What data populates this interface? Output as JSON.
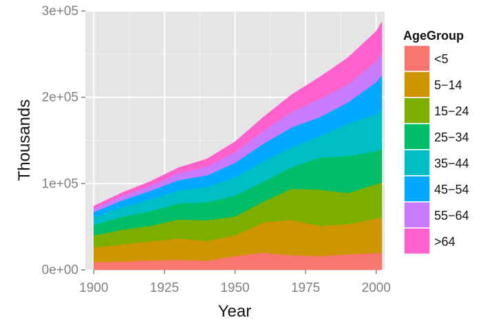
{
  "chart_data": {
    "type": "area",
    "stacked": true,
    "title": "",
    "xlabel": "Year",
    "ylabel": "Thousands",
    "xlim": [
      1897,
      2003
    ],
    "ylim": [
      0,
      300000
    ],
    "x_ticks": [
      1900,
      1925,
      1950,
      1975,
      2000
    ],
    "x_tick_labels": [
      "1900",
      "1925",
      "1950",
      "1975",
      "2000"
    ],
    "y_ticks": [
      0,
      100000,
      200000,
      300000
    ],
    "y_tick_labels": [
      "0e+00",
      "1e+05",
      "2e+05",
      "3e+05"
    ],
    "grid": true,
    "legend": {
      "title": "AgeGroup",
      "position": "right"
    },
    "x": [
      1900,
      1910,
      1920,
      1930,
      1940,
      1950,
      1960,
      1970,
      1980,
      1990,
      2000,
      2002
    ],
    "series": [
      {
        "name": "<5",
        "color": "#F8766D",
        "values": [
          9000,
          9500,
          11000,
          11500,
          10500,
          16000,
          20000,
          17000,
          16000,
          18000,
          19500,
          19500
        ]
      },
      {
        "name": "5−14",
        "color": "#CD9600",
        "values": [
          17000,
          20000,
          22000,
          25000,
          23000,
          24000,
          35000,
          41000,
          35000,
          35000,
          40000,
          41000
        ]
      },
      {
        "name": "15−24",
        "color": "#7CAE00",
        "values": [
          14000,
          17000,
          18000,
          22000,
          24000,
          22000,
          24000,
          36000,
          42000,
          36000,
          40000,
          41000
        ]
      },
      {
        "name": "25−34",
        "color": "#00BE67",
        "values": [
          12000,
          15000,
          17000,
          18500,
          21000,
          24000,
          23000,
          25000,
          37000,
          43000,
          38000,
          39000
        ]
      },
      {
        "name": "35−44",
        "color": "#00BFC4",
        "values": [
          9000,
          11000,
          13500,
          15000,
          17500,
          21000,
          24000,
          23000,
          25000,
          37000,
          43000,
          45000
        ]
      },
      {
        "name": "45−54",
        "color": "#00A9FF",
        "values": [
          6000,
          8000,
          10000,
          12000,
          13500,
          17000,
          20000,
          23000,
          22000,
          25000,
          37000,
          40000
        ]
      },
      {
        "name": "55−64",
        "color": "#C77CFF",
        "values": [
          4000,
          5000,
          6000,
          8000,
          10000,
          12500,
          15000,
          18000,
          21000,
          21000,
          24000,
          26000
        ]
      },
      {
        "name": ">64",
        "color": "#FF61CC",
        "values": [
          3000,
          4000,
          5000,
          6500,
          9000,
          12000,
          16000,
          20000,
          25500,
          31000,
          35000,
          36000
        ]
      }
    ]
  }
}
